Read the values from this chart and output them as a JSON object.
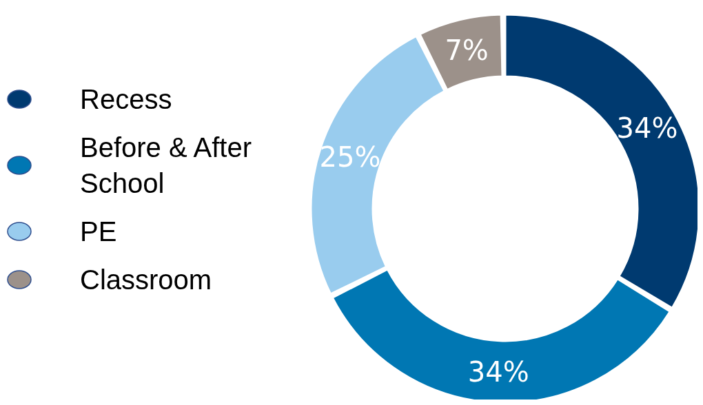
{
  "chart_data": {
    "type": "donut",
    "categories": [
      "Recess",
      "Before & After School",
      "PE",
      "Classroom"
    ],
    "values": [
      34,
      34,
      25,
      7
    ],
    "colors": [
      "#003a70",
      "#0077b3",
      "#99ccee",
      "#9c918a"
    ],
    "value_labels": [
      "34%",
      "34%",
      "25%",
      "7%"
    ],
    "legend": "left"
  }
}
